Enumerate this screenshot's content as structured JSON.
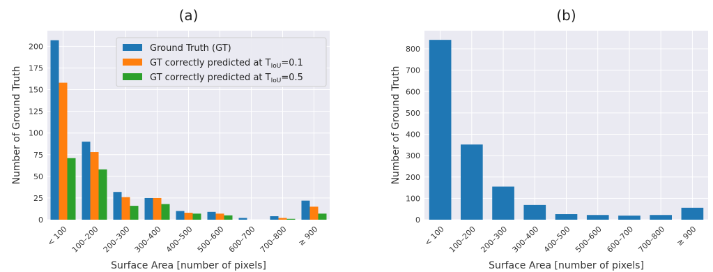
{
  "chart_data": [
    {
      "type": "bar",
      "title": "(a)",
      "xlabel": "Surface Area [number of pixels]",
      "ylabel": "Number of Ground Truth",
      "categories": [
        "< 100",
        "100–200",
        "200–300",
        "300–400",
        "400–500",
        "500–600",
        "600–700",
        "700–800",
        "≥ 900"
      ],
      "ylim": [
        0,
        218
      ],
      "yticks": [
        0,
        25,
        50,
        75,
        100,
        125,
        150,
        175,
        200
      ],
      "grid": true,
      "legend_position": "top-right",
      "series": [
        {
          "name": "Ground Truth (GT)",
          "legend_main": "Ground Truth (GT)",
          "legend_sub": "",
          "legend_tail": "",
          "color": "#1f77b4",
          "values": [
            207,
            90,
            32,
            25,
            10,
            9,
            2,
            4,
            22
          ]
        },
        {
          "name": "GT correctly predicted at TIoU=0.1",
          "legend_main": "GT correctly predicted at T",
          "legend_sub": "IoU",
          "legend_tail": "=0.1",
          "color": "#ff7f0e",
          "values": [
            158,
            78,
            26,
            25,
            8,
            7,
            0,
            2,
            15
          ]
        },
        {
          "name": "GT correctly predicted at TIoU=0.5",
          "legend_main": "GT correctly predicted at T",
          "legend_sub": "IoU",
          "legend_tail": "=0.5",
          "color": "#2ca02c",
          "values": [
            71,
            58,
            16,
            18,
            7,
            5,
            0,
            1,
            7
          ]
        }
      ]
    },
    {
      "type": "bar",
      "title": "(b)",
      "xlabel": "Surface Area [number of pixels]",
      "ylabel": "Number of Ground Truth",
      "categories": [
        "< 100",
        "100–200",
        "200–300",
        "300–400",
        "400–500",
        "500–600",
        "600–700",
        "700–800",
        "≥ 900"
      ],
      "ylim": [
        0,
        885
      ],
      "yticks": [
        0,
        100,
        200,
        300,
        400,
        500,
        600,
        700,
        800
      ],
      "grid": true,
      "series": [
        {
          "color": "#1f77b4",
          "values": [
            842,
            352,
            155,
            69,
            26,
            22,
            19,
            22,
            56
          ]
        }
      ]
    }
  ]
}
